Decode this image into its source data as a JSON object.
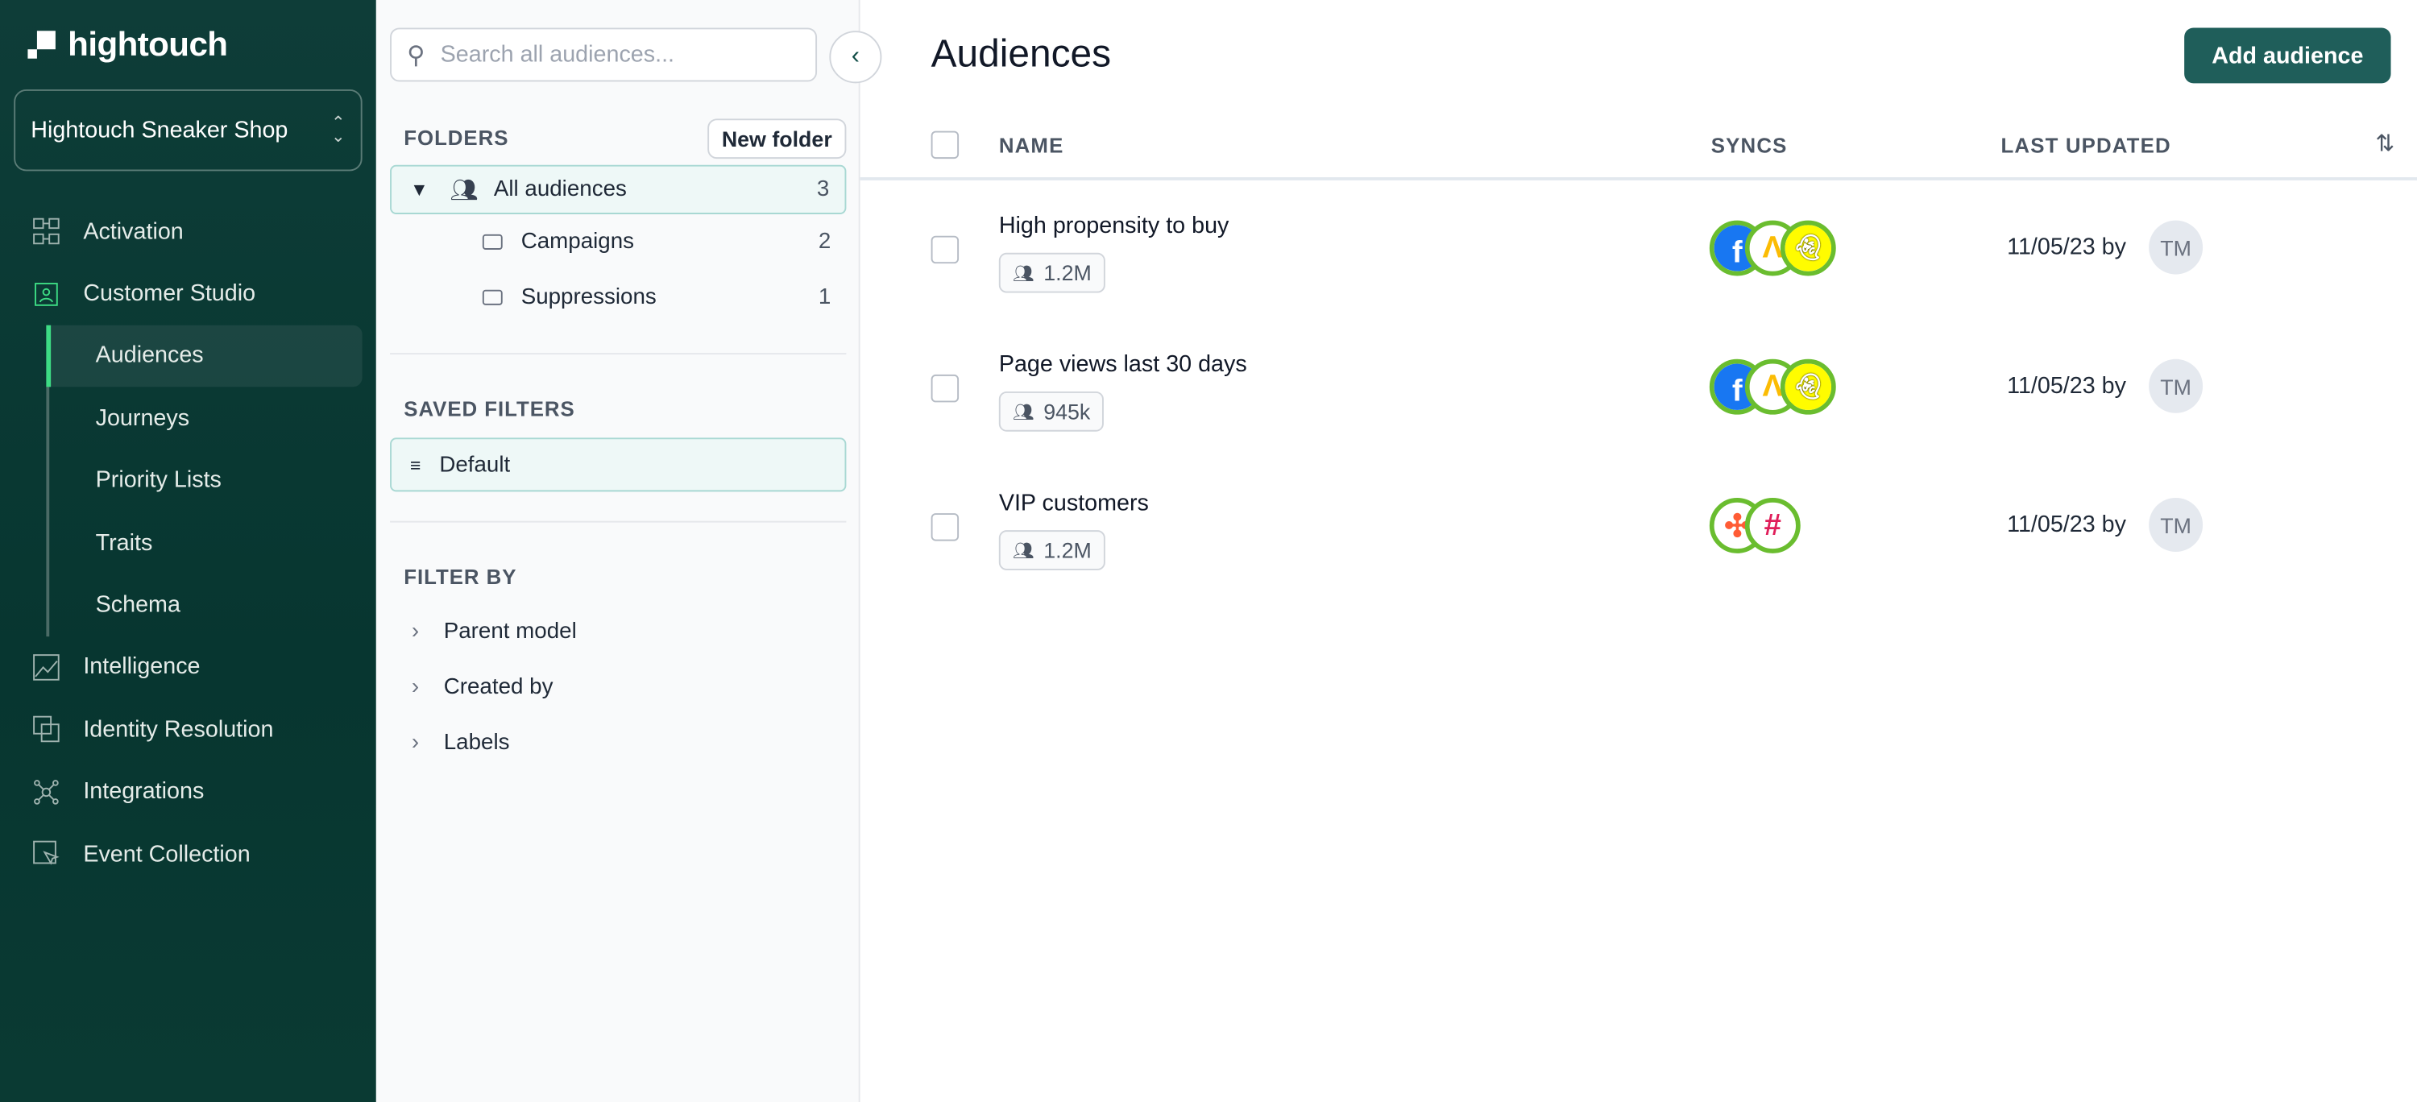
{
  "brand": {
    "name": "hightouch"
  },
  "workspace": {
    "name": "Hightouch Sneaker Shop"
  },
  "nav": {
    "items": [
      {
        "label": "Activation",
        "icon": "activation-icon"
      },
      {
        "label": "Customer Studio",
        "icon": "customer-studio-icon"
      },
      {
        "label": "Intelligence",
        "icon": "intelligence-icon"
      },
      {
        "label": "Identity Resolution",
        "icon": "identity-resolution-icon"
      },
      {
        "label": "Integrations",
        "icon": "integrations-icon"
      },
      {
        "label": "Event Collection",
        "icon": "event-collection-icon"
      }
    ],
    "sub_items": [
      {
        "label": "Audiences",
        "active": true
      },
      {
        "label": "Journeys"
      },
      {
        "label": "Priority Lists"
      },
      {
        "label": "Traits"
      },
      {
        "label": "Schema"
      }
    ]
  },
  "panel": {
    "search_placeholder": "Search all audiences...",
    "folders_title": "FOLDERS",
    "new_folder": "New folder",
    "folders": [
      {
        "label": "All audiences",
        "count": "3"
      },
      {
        "label": "Campaigns",
        "count": "2"
      },
      {
        "label": "Suppressions",
        "count": "1"
      }
    ],
    "saved_filters_title": "SAVED FILTERS",
    "saved_filters": [
      {
        "label": "Default"
      }
    ],
    "filter_by_title": "FILTER BY",
    "filters": [
      {
        "label": "Parent model"
      },
      {
        "label": "Created by"
      },
      {
        "label": "Labels"
      }
    ]
  },
  "main": {
    "title": "Audiences",
    "add_button": "Add audience",
    "columns": {
      "name": "NAME",
      "syncs": "SYNCS",
      "last_updated": "LAST UPDATED"
    },
    "rows": [
      {
        "name": "High propensity to buy",
        "size": "1.2M",
        "syncs": [
          "facebook",
          "google-ads",
          "snapchat"
        ],
        "updated": "11/05/23 by",
        "user": "TM"
      },
      {
        "name": "Page views last 30 days",
        "size": "945k",
        "syncs": [
          "facebook",
          "google-ads",
          "snapchat"
        ],
        "updated": "11/05/23 by",
        "user": "TM"
      },
      {
        "name": "VIP customers",
        "size": "1.2M",
        "syncs": [
          "hubspot",
          "slack"
        ],
        "updated": "11/05/23 by",
        "user": "TM"
      }
    ]
  },
  "colors": {
    "sidebar": "#0b3a35",
    "accent": "#1f5e5a",
    "active_bar": "#3ddc84",
    "sync_ring": "#6abd2f"
  }
}
